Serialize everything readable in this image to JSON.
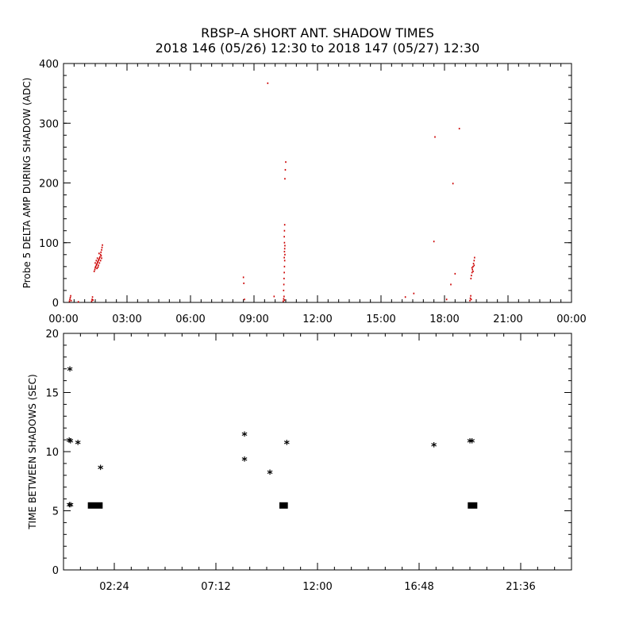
{
  "header": {
    "title_line1": "RBSP–A SHORT ANT. SHADOW TIMES",
    "title_line2": "2018 146 (05/26) 12:30 to 2018 147 (05/27) 12:30"
  },
  "colors": {
    "scatter": "#cc0000",
    "ink": "#000000"
  },
  "chart_data": [
    {
      "type": "scatter",
      "title": "",
      "ylabel": "Probe 5 DELTA AMP DURING SHADOW (ADC)",
      "xlabel": "",
      "x_unit": "hours",
      "xlim": [
        0,
        24
      ],
      "ylim": [
        0,
        400
      ],
      "x_tick_labels": [
        {
          "x": 0,
          "label": "00:00"
        },
        {
          "x": 3,
          "label": "03:00"
        },
        {
          "x": 6,
          "label": "06:00"
        },
        {
          "x": 9,
          "label": "09:00"
        },
        {
          "x": 12,
          "label": "12:00"
        },
        {
          "x": 15,
          "label": "15:00"
        },
        {
          "x": 18,
          "label": "18:00"
        },
        {
          "x": 21,
          "label": "21:00"
        },
        {
          "x": 24,
          "label": "00:00"
        }
      ],
      "y_tick_labels": [
        {
          "y": 0,
          "label": "0"
        },
        {
          "y": 100,
          "label": "100"
        },
        {
          "y": 200,
          "label": "200"
        },
        {
          "y": 300,
          "label": "300"
        },
        {
          "y": 400,
          "label": "400"
        }
      ],
      "points": [
        [
          0.28,
          2
        ],
        [
          0.3,
          5
        ],
        [
          0.32,
          8
        ],
        [
          0.34,
          11
        ],
        [
          0.36,
          3
        ],
        [
          0.7,
          1
        ],
        [
          1.33,
          2
        ],
        [
          1.35,
          5
        ],
        [
          1.37,
          9
        ],
        [
          1.39,
          4
        ],
        [
          1.45,
          52
        ],
        [
          1.48,
          55
        ],
        [
          1.5,
          58
        ],
        [
          1.52,
          60
        ],
        [
          1.55,
          62
        ],
        [
          1.57,
          64
        ],
        [
          1.6,
          66
        ],
        [
          1.62,
          68
        ],
        [
          1.65,
          70
        ],
        [
          1.67,
          72
        ],
        [
          1.7,
          74
        ],
        [
          1.72,
          76
        ],
        [
          1.75,
          80
        ],
        [
          1.77,
          84
        ],
        [
          1.8,
          88
        ],
        [
          1.82,
          92
        ],
        [
          1.84,
          96
        ],
        [
          1.5,
          66
        ],
        [
          1.55,
          70
        ],
        [
          1.6,
          74
        ],
        [
          1.65,
          62
        ],
        [
          1.7,
          66
        ],
        [
          1.75,
          70
        ],
        [
          1.78,
          78
        ],
        [
          1.8,
          74
        ],
        [
          1.58,
          57
        ],
        [
          1.63,
          59
        ],
        [
          1.68,
          82
        ],
        [
          8.5,
          42
        ],
        [
          8.52,
          32
        ],
        [
          8.55,
          5
        ],
        [
          9.65,
          367
        ],
        [
          9.95,
          10
        ],
        [
          10.38,
          2
        ],
        [
          10.4,
          6
        ],
        [
          10.42,
          10
        ],
        [
          10.44,
          4
        ],
        [
          10.4,
          20
        ],
        [
          10.41,
          30
        ],
        [
          10.42,
          40
        ],
        [
          10.43,
          50
        ],
        [
          10.44,
          60
        ],
        [
          10.45,
          70
        ],
        [
          10.46,
          80
        ],
        [
          10.45,
          90
        ],
        [
          10.44,
          100
        ],
        [
          10.43,
          110
        ],
        [
          10.44,
          120
        ],
        [
          10.45,
          130
        ],
        [
          10.44,
          85
        ],
        [
          10.46,
          95
        ],
        [
          10.43,
          75
        ],
        [
          10.46,
          207
        ],
        [
          10.48,
          222
        ],
        [
          10.5,
          235
        ],
        [
          16.15,
          9
        ],
        [
          16.55,
          15
        ],
        [
          17.5,
          102
        ],
        [
          17.55,
          277
        ],
        [
          18.1,
          5
        ],
        [
          18.3,
          30
        ],
        [
          18.4,
          199
        ],
        [
          18.5,
          48
        ],
        [
          18.7,
          291
        ],
        [
          19.2,
          3
        ],
        [
          19.22,
          7
        ],
        [
          19.24,
          11
        ],
        [
          19.26,
          5
        ],
        [
          19.25,
          40
        ],
        [
          19.27,
          45
        ],
        [
          19.3,
          50
        ],
        [
          19.32,
          55
        ],
        [
          19.35,
          60
        ],
        [
          19.37,
          65
        ],
        [
          19.4,
          70
        ],
        [
          19.42,
          75
        ],
        [
          19.3,
          58
        ],
        [
          19.35,
          52
        ],
        [
          19.4,
          62
        ]
      ]
    },
    {
      "type": "scatter",
      "title": "",
      "ylabel": "TIME BETWEEN SHADOWS (SEC)",
      "xlabel": "",
      "x_unit": "hours",
      "xlim": [
        0,
        24
      ],
      "ylim": [
        0,
        20
      ],
      "x_tick_labels": [
        {
          "x": 2.4,
          "label": "02:24"
        },
        {
          "x": 7.2,
          "label": "07:12"
        },
        {
          "x": 12,
          "label": "12:00"
        },
        {
          "x": 16.8,
          "label": "16:48"
        },
        {
          "x": 21.6,
          "label": "21:36"
        }
      ],
      "y_tick_labels": [
        {
          "y": 0,
          "label": "0"
        },
        {
          "y": 5,
          "label": "5"
        },
        {
          "y": 10,
          "label": "10"
        },
        {
          "y": 15,
          "label": "15"
        },
        {
          "y": 20,
          "label": "20"
        }
      ],
      "points": [
        [
          0.3,
          16.9
        ],
        [
          0.27,
          10.9
        ],
        [
          0.33,
          10.85
        ],
        [
          0.68,
          10.7
        ],
        [
          0.28,
          5.45
        ],
        [
          0.34,
          5.45
        ],
        [
          1.75,
          8.6
        ],
        [
          8.55,
          11.4
        ],
        [
          8.55,
          9.3
        ],
        [
          9.75,
          8.2
        ],
        [
          10.55,
          10.7
        ],
        [
          17.5,
          10.5
        ],
        [
          19.2,
          10.85
        ],
        [
          19.3,
          10.85
        ]
      ],
      "bars": [
        {
          "x_start": 1.15,
          "x_end": 1.85,
          "y": 5.45
        },
        {
          "x_start": 10.2,
          "x_end": 10.6,
          "y": 5.45
        },
        {
          "x_start": 19.1,
          "x_end": 19.55,
          "y": 5.45
        }
      ]
    }
  ]
}
